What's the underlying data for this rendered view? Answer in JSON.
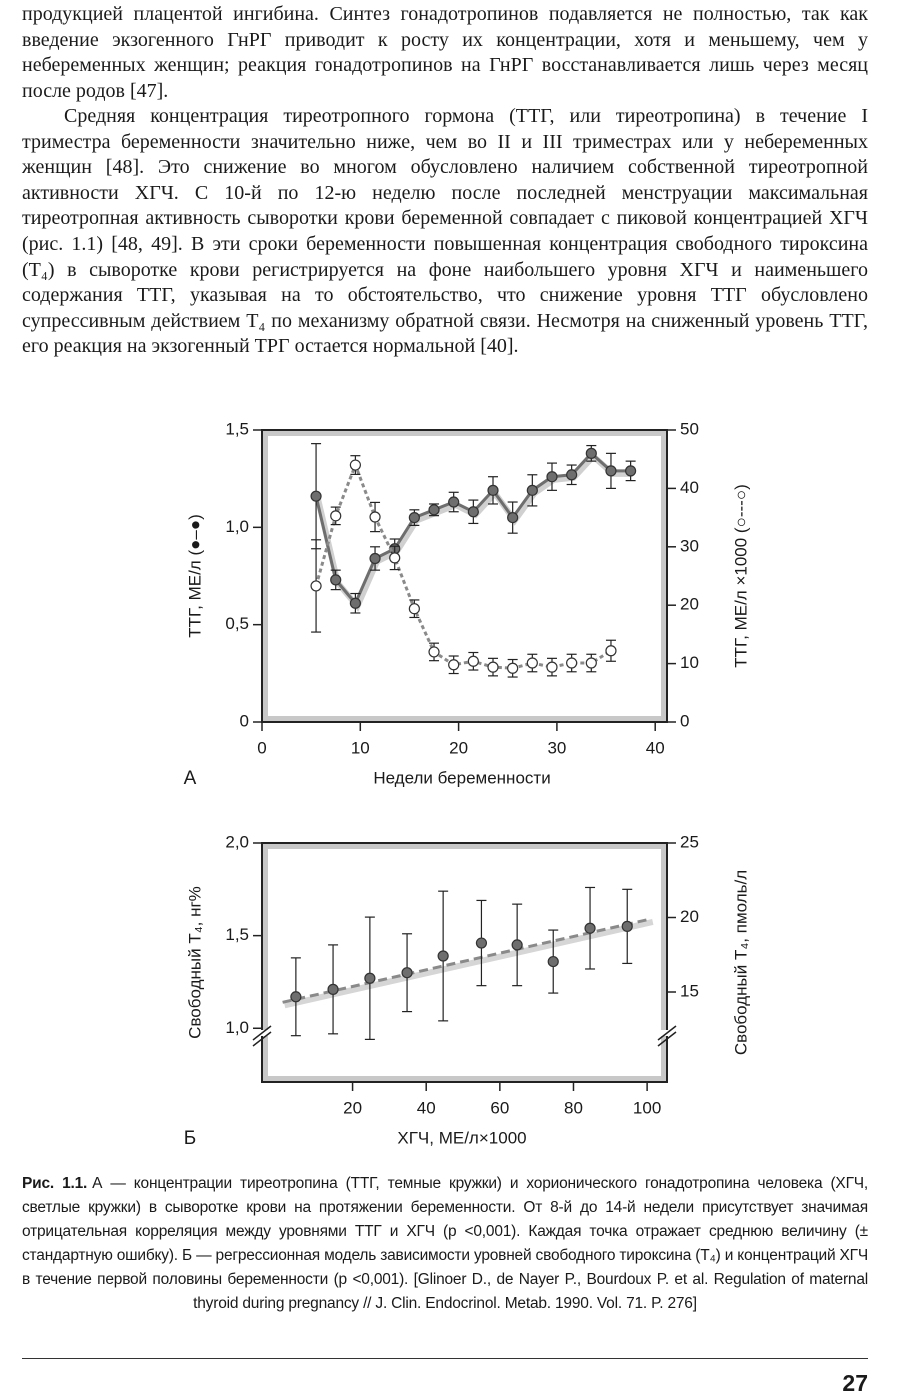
{
  "paragraphs": [
    "продукцией плацентой ингибина. Синтез гонадотропинов подавляется не полностью, так как введение экзогенного ГнРГ приводит к росту их концентрации, хотя и меньшему, чем у небеременных женщин; реакция гонадотропинов на ГнРГ восстанавливается лишь через месяц после родов [47].",
    "Средняя концентрация тиреотропного гормона (ТТГ, или тиреотропина) в течение I триместра беременности значительно ниже, чем во II и III триместрах или у небеременных женщин [48]. Это снижение во многом обусловлено наличием собственной тиреотропной активности ХГЧ. С 10-й по 12-ю неделю после последней менструации максимальная тиреотропная активность сыворотки крови беременной совпадает с пиковой концентрацией ХГЧ (рис. 1.1) [48, 49]. В эти сроки беременности повышенная концентрация свободного тироксина (T₄) в сыворотке крови регистрируется на фоне наибольшего уровня ХГЧ и наименьшего содержания ТТГ, указывая на то обстоятельство, что снижение уровня ТТГ обусловлено супрессивным действием T₄ по механизму обратной связи. Несмотря на сниженный уровень ТТГ, его реакция на экзогенный ТРГ остается нормальной [40]."
  ],
  "chart_data": [
    {
      "type": "line",
      "panel": "А",
      "x_label": "Недели беременности",
      "y_label": "ТТГ, МЕ/л (●–●)",
      "y2_label": "ТТГ, МЕ/л ×1000 (○---○)",
      "xlim": [
        0,
        41.2
      ],
      "xticks": [
        0,
        10,
        20,
        30,
        40
      ],
      "ylim": [
        0,
        1.5
      ],
      "yticks": [
        0,
        {
          "value": 0.5,
          "label": "0,5"
        },
        {
          "value": 1,
          "label": "1,0"
        },
        {
          "value": 1.5,
          "label": "1,5"
        }
      ],
      "y2lim": [
        0,
        50
      ],
      "y2ticks": [
        0,
        10,
        20,
        30,
        40,
        50
      ],
      "series": [
        {
          "color": "#6e6e6e",
          "marker": "filled",
          "line": "solid",
          "x": [
            5.5,
            7.5,
            9.5,
            11.5,
            13.5,
            15.5,
            17.5,
            19.5,
            21.5,
            23.5,
            25.5,
            27.5,
            29.5,
            31.5,
            33.5,
            35.5,
            37.5
          ],
          "values": [
            1.16,
            0.73,
            0.61,
            0.84,
            0.89,
            1.05,
            1.09,
            1.13,
            1.08,
            1.19,
            1.05,
            1.19,
            1.26,
            1.27,
            1.38,
            1.29,
            1.29
          ],
          "errors": [
            0.27,
            0.05,
            0.05,
            0.06,
            0.05,
            0.04,
            0.03,
            0.05,
            0.06,
            0.07,
            0.08,
            0.08,
            0.07,
            0.05,
            0.04,
            0.09,
            0.05
          ]
        },
        {
          "color": "#8a8a8a",
          "marker": "open",
          "line": "dotted",
          "axis": "y2",
          "x": [
            5.5,
            7.5,
            9.5,
            11.5,
            13.5,
            15.5,
            17.5,
            19.5,
            21.5,
            23.5,
            25.5,
            27.5,
            29.5,
            31.5,
            33.5,
            35.5
          ],
          "values": [
            23.3,
            35.3,
            44.0,
            35.1,
            28.1,
            19.4,
            12.0,
            9.8,
            10.4,
            9.4,
            9.2,
            10.1,
            9.4,
            10.1,
            10.1,
            12.2
          ],
          "errors": [
            7.9,
            1.5,
            1.6,
            2.5,
            2.0,
            1.5,
            1.5,
            1.5,
            1.5,
            1.5,
            1.5,
            1.5,
            1.5,
            1.5,
            1.5,
            1.8
          ]
        }
      ]
    },
    {
      "type": "scatter",
      "panel": "Б",
      "x_label": "ХГЧ, МЕ/л×1000",
      "y_label": "Свободный T₄, нг%",
      "y2_label": "Свободный T₄, пмоль/л",
      "xlim": [
        -4.6,
        105.4
      ],
      "xticks": [
        20,
        40,
        60,
        80,
        100
      ],
      "ylim": [
        0.71,
        2.0
      ],
      "yticks": [
        {
          "value": 1,
          "label": "1,0"
        },
        {
          "value": 1.5,
          "label": "1,5"
        },
        {
          "value": 2,
          "label": "2,0"
        }
      ],
      "y2lim": [
        8.96,
        25
      ],
      "y2ticks": [
        15,
        20,
        25
      ],
      "series": [
        {
          "color": "#6e6e6e",
          "marker": "filled",
          "x": [
            4.6,
            14.7,
            24.7,
            34.8,
            44.6,
            55,
            64.7,
            74.5,
            84.5,
            94.6
          ],
          "values": [
            1.17,
            1.21,
            1.27,
            1.3,
            1.39,
            1.46,
            1.45,
            1.36,
            1.54,
            1.55
          ],
          "errors": [
            0.21,
            0.24,
            0.33,
            0.21,
            0.35,
            0.23,
            0.22,
            0.17,
            0.22,
            0.2
          ]
        }
      ],
      "trendline": {
        "color": "#8a8a8a",
        "x": [
          1,
          101
        ],
        "values": [
          1.14,
          1.59
        ]
      }
    }
  ],
  "caption": {
    "label": "Рис. 1.1.",
    "text": "А — концентрации тиреотропина (ТТГ, темные кружки) и хорионического гонадотропина человека (ХГЧ, светлые кружки) в сыворотке крови на протяжении беременности. От 8-й до 14-й недели присутствует значимая отрицательная корреляция между уровнями ТТГ и ХГЧ (p <0,001). Каждая точка отражает среднюю величину (± стандартную ошибку). Б — регрессионная модель зависимости уровней свободного тироксина (T₄) и концентраций ХГЧ в течение первой половины беременности (p <0,001). [Glinoer D., de Nayer P., Bourdoux P. et al. Regulation of maternal thyroid during pregnancy // J. Clin. Endocrinol. Metab. 1990. Vol. 71. P. 276]"
  },
  "page_number": "27"
}
